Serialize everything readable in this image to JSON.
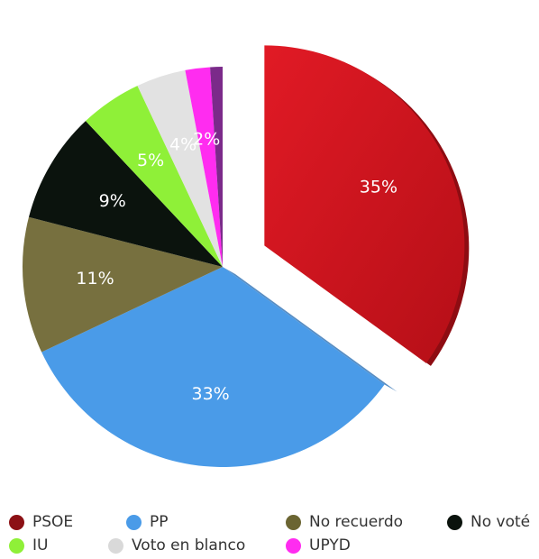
{
  "chart_data": {
    "type": "pie",
    "title": "",
    "categories": [
      "PSOE",
      "PP",
      "No recuerdo",
      "No voté",
      "IU",
      "Voto en blanco",
      "UPYD",
      ""
    ],
    "values": [
      35,
      33,
      11,
      9,
      5,
      4,
      2,
      1
    ],
    "labels": [
      "35%",
      "33%",
      "11%",
      "9%",
      "5%",
      "4%",
      "2%",
      ""
    ],
    "colors": [
      "#d0141e",
      "#4a9be8",
      "#77703f",
      "#0b130d",
      "#8ff038",
      "#e2e2e2",
      "#ff2cf0",
      "#7b2a8a"
    ],
    "exploded": [
      "PSOE"
    ],
    "legend_position": "bottom",
    "legend": [
      {
        "label": "PSOE",
        "color": "#8c1115"
      },
      {
        "label": "PP",
        "color": "#4a9be8"
      },
      {
        "label": "No recuerdo",
        "color": "#6b6532"
      },
      {
        "label": "No voté",
        "color": "#0b130d"
      },
      {
        "label": "IU",
        "color": "#8ff038"
      },
      {
        "label": "Voto en blanco",
        "color": "#d9d9d9"
      },
      {
        "label": "UPYD",
        "color": "#ff2cf0"
      }
    ]
  }
}
